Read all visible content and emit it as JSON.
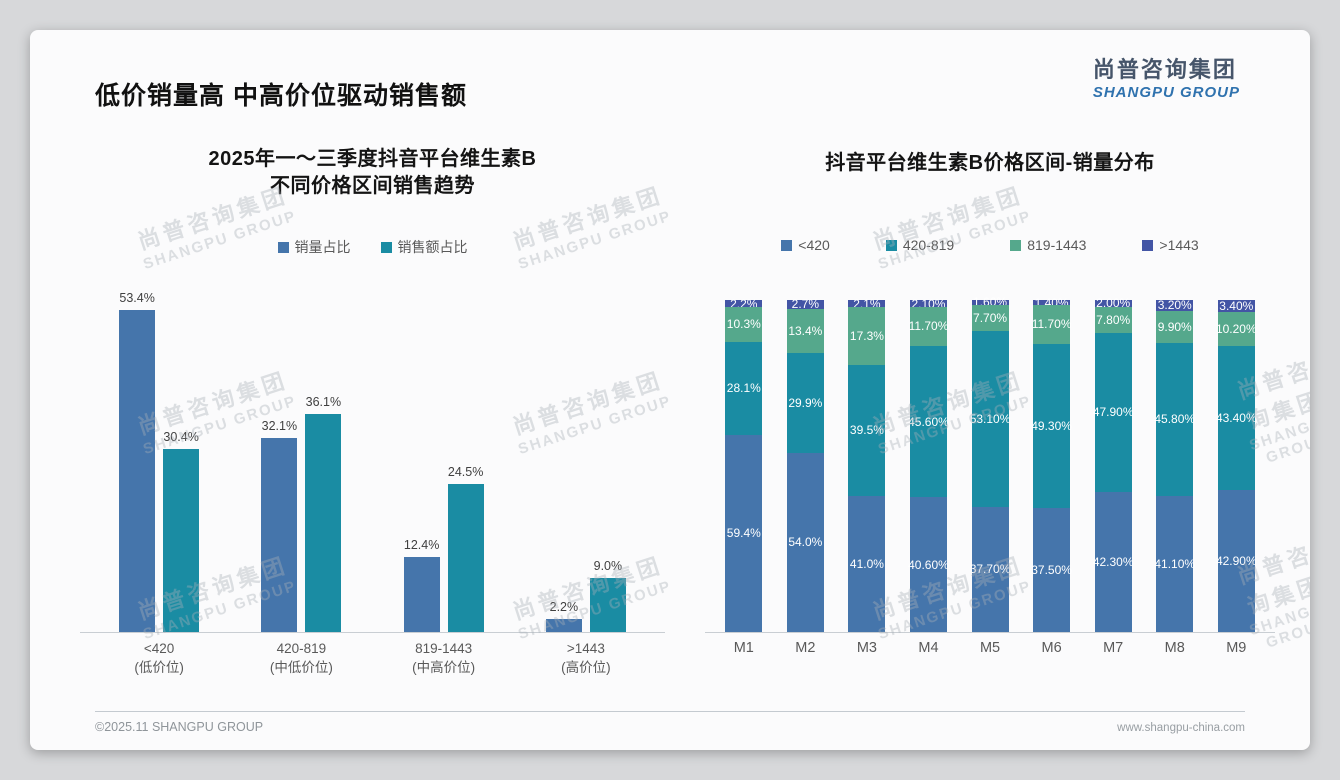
{
  "slide": {
    "title": "低价销量高 中高价位驱动销售额",
    "logo": {
      "cn": "尚普咨询集团",
      "en": "SHANGPU GROUP"
    },
    "watermark": {
      "cn": "尚普咨询集团",
      "en": "SHANGPU GROUP"
    },
    "footer": {
      "left": "©2025.11 SHANGPU GROUP",
      "right": "www.shangpu-china.com"
    }
  },
  "colors": {
    "blue": "#4575ab",
    "teal": "#1a8ca3",
    "green": "#55a88c",
    "indigo": "#4355a5"
  },
  "chart_data": [
    {
      "type": "bar",
      "title_lines": [
        "2025年一～三季度抖音平台维生素B",
        "不同价格区间销售趋势"
      ],
      "categories": [
        "<420",
        "420-819",
        "819-1443",
        ">1443"
      ],
      "category_sublabels": [
        "(低价位)",
        "(中低价位)",
        "(中高价位)",
        "(高价位)"
      ],
      "series": [
        {
          "name": "销量占比",
          "color_key": "blue",
          "values": [
            53.4,
            32.1,
            12.4,
            2.2
          ],
          "labels": [
            "53.4%",
            "32.1%",
            "12.4%",
            "2.2%"
          ]
        },
        {
          "name": "销售额占比",
          "color_key": "teal",
          "values": [
            30.4,
            36.1,
            24.5,
            9.0
          ],
          "labels": [
            "30.4%",
            "36.1%",
            "24.5%",
            "9.0%"
          ]
        }
      ],
      "ylim": [
        0,
        56
      ],
      "grid": false,
      "legend_position": "top"
    },
    {
      "type": "stacked-bar",
      "title": "抖音平台维生素B价格区间-销量分布",
      "categories": [
        "M1",
        "M2",
        "M3",
        "M4",
        "M5",
        "M6",
        "M7",
        "M8",
        "M9"
      ],
      "series": [
        {
          "name": "<420",
          "color_key": "blue",
          "values": [
            59.4,
            54.0,
            41.0,
            40.6,
            37.7,
            37.5,
            42.3,
            41.1,
            42.9
          ],
          "labels": [
            "59.4%",
            "54.0%",
            "41.0%",
            "40.60%",
            "37.70%",
            "37.50%",
            "42.30%",
            "41.10%",
            "42.90%"
          ]
        },
        {
          "name": "420-819",
          "color_key": "teal",
          "values": [
            28.1,
            29.9,
            39.5,
            45.6,
            53.1,
            49.3,
            47.9,
            45.8,
            43.4
          ],
          "labels": [
            "28.1%",
            "29.9%",
            "39.5%",
            "45.60%",
            "53.10%",
            "49.30%",
            "47.90%",
            "45.80%",
            "43.40%"
          ]
        },
        {
          "name": "819-1443",
          "color_key": "green",
          "values": [
            10.3,
            13.4,
            17.3,
            11.7,
            7.7,
            11.7,
            7.8,
            9.9,
            10.2
          ],
          "labels": [
            "10.3%",
            "13.4%",
            "17.3%",
            "11.70%",
            "7.70%",
            "11.70%",
            "7.80%",
            "9.90%",
            "10.20%"
          ]
        },
        {
          "name": ">1443",
          "color_key": "indigo",
          "values": [
            2.2,
            2.7,
            2.1,
            2.1,
            1.6,
            1.4,
            2.0,
            3.2,
            3.4
          ],
          "labels": [
            "2.2%",
            "2.7%",
            "2.1%",
            "2.10%",
            "1.60%",
            "1.40%",
            "2.00%",
            "3.20%",
            "3.40%"
          ]
        }
      ],
      "ylim": [
        0,
        100
      ],
      "grid": false,
      "legend_position": "top"
    }
  ]
}
